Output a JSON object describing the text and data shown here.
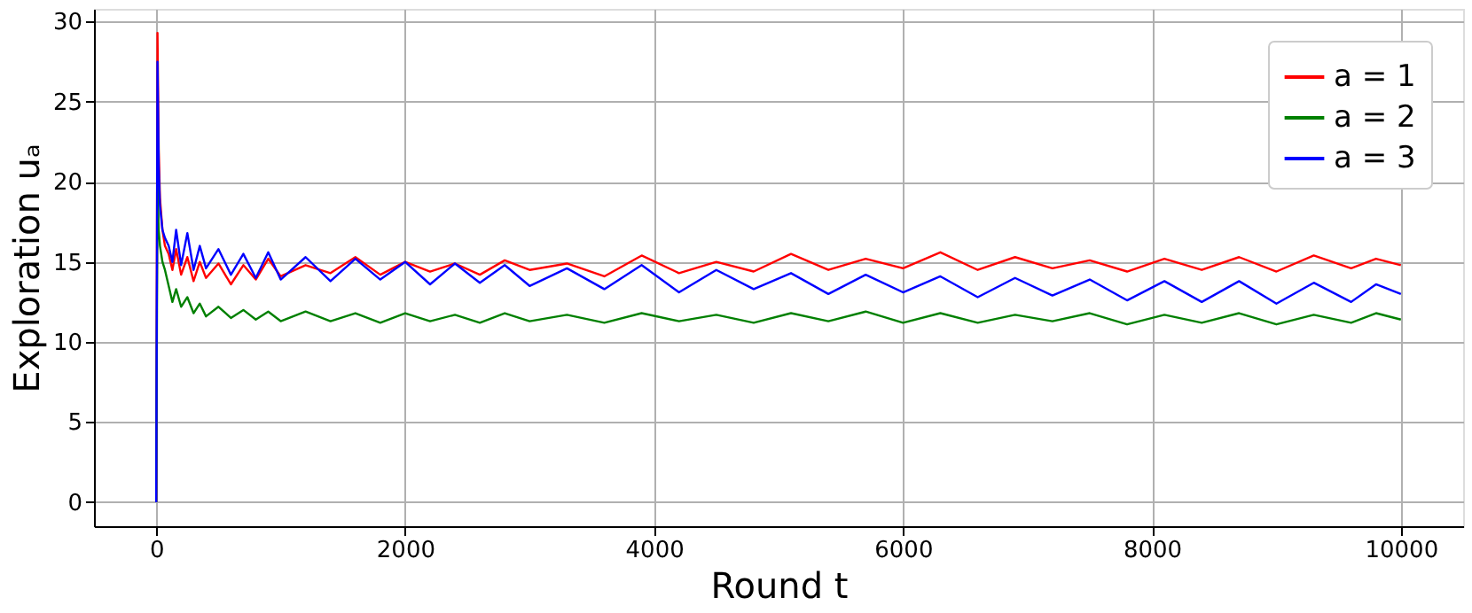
{
  "chart_data": {
    "type": "line",
    "xlabel": "Round t",
    "ylabel": "Exploration uₐ",
    "x": [
      0,
      10,
      20,
      30,
      50,
      70,
      100,
      130,
      160,
      200,
      250,
      300,
      350,
      400,
      500,
      600,
      700,
      800,
      900,
      1000,
      1200,
      1400,
      1600,
      1800,
      2000,
      2200,
      2400,
      2600,
      2800,
      3000,
      3300,
      3600,
      3900,
      4200,
      4500,
      4800,
      5100,
      5400,
      5700,
      6000,
      6300,
      6600,
      6900,
      7200,
      7500,
      7800,
      8100,
      8400,
      8700,
      9000,
      9300,
      9600,
      9800,
      10000
    ],
    "series": [
      {
        "name": "a = 1",
        "color": "#ff0000",
        "values": [
          0,
          29.3,
          22,
          19,
          17,
          16,
          15.5,
          14.5,
          15.8,
          14.2,
          15.3,
          13.8,
          15,
          14,
          14.9,
          13.6,
          14.8,
          13.9,
          15.2,
          14.1,
          14.8,
          14.3,
          15.3,
          14.2,
          15,
          14.4,
          14.9,
          14.2,
          15.1,
          14.5,
          14.9,
          14.1,
          15.4,
          14.3,
          15,
          14.4,
          15.5,
          14.5,
          15.2,
          14.6,
          15.6,
          14.5,
          15.3,
          14.6,
          15.1,
          14.4,
          15.2,
          14.5,
          15.3,
          14.4,
          15.4,
          14.6,
          15.2,
          14.8
        ]
      },
      {
        "name": "a = 2",
        "color": "#008000",
        "values": [
          0,
          20,
          17,
          16,
          15,
          14.5,
          13.5,
          12.5,
          13.3,
          12.2,
          12.8,
          11.8,
          12.4,
          11.6,
          12.2,
          11.5,
          12,
          11.4,
          11.9,
          11.3,
          11.9,
          11.3,
          11.8,
          11.2,
          11.8,
          11.3,
          11.7,
          11.2,
          11.8,
          11.3,
          11.7,
          11.2,
          11.8,
          11.3,
          11.7,
          11.2,
          11.8,
          11.3,
          11.9,
          11.2,
          11.8,
          11.2,
          11.7,
          11.3,
          11.8,
          11.1,
          11.7,
          11.2,
          11.8,
          11.1,
          11.7,
          11.2,
          11.8,
          11.4
        ]
      },
      {
        "name": "a = 3",
        "color": "#0000ff",
        "values": [
          0,
          27.5,
          21,
          18.5,
          17,
          16.5,
          16,
          15,
          17,
          14.8,
          16.8,
          14.5,
          16,
          14.6,
          15.8,
          14.2,
          15.5,
          14,
          15.6,
          13.9,
          15.3,
          13.8,
          15.2,
          13.9,
          15,
          13.6,
          14.9,
          13.7,
          14.8,
          13.5,
          14.6,
          13.3,
          14.8,
          13.1,
          14.5,
          13.3,
          14.3,
          13,
          14.2,
          13.1,
          14.1,
          12.8,
          14,
          12.9,
          13.9,
          12.6,
          13.8,
          12.5,
          13.8,
          12.4,
          13.7,
          12.5,
          13.6,
          13
        ]
      }
    ],
    "xlim": [
      -500,
      10500
    ],
    "ylim": [
      -1.5,
      30.8
    ],
    "xticks": [
      0,
      2000,
      4000,
      6000,
      8000,
      10000
    ],
    "yticks": [
      0,
      5,
      10,
      15,
      20,
      25,
      30
    ],
    "grid": true,
    "legend": "top right",
    "marker": "none",
    "line_style": "solid"
  }
}
